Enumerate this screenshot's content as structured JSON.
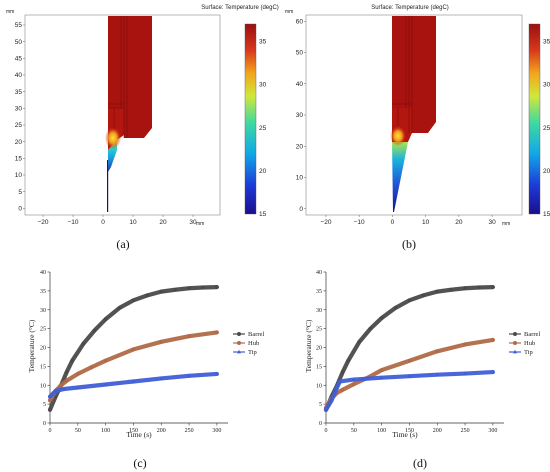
{
  "captions": [
    "(a)",
    "(b)",
    "(c)",
    "(d)"
  ],
  "colors": {
    "barrel": "#4a4a4a",
    "hub": "#b06a48",
    "tip": "#3f5fd6",
    "hot": "#9b0f0f",
    "cold": "#1b0f8a"
  },
  "chart_data": [
    {
      "type": "heatmap",
      "panel": "a",
      "title": "Surface: Temperature (degC)",
      "axis_unit": "mm",
      "x_ticks": [
        "−20",
        "−10",
        "0",
        "10",
        "20",
        "30"
      ],
      "y_ticks": [
        "0",
        "5",
        "10",
        "15",
        "20",
        "25",
        "30",
        "35",
        "40",
        "45",
        "50",
        "55"
      ],
      "xlim": [
        -26,
        39
      ],
      "ylim": [
        -2,
        58
      ],
      "colorbar_ticks": [
        "35",
        "30",
        "25",
        "20",
        "15"
      ],
      "colorbar_range": [
        15,
        37
      ]
    },
    {
      "type": "heatmap",
      "panel": "b",
      "title": "Surface: Temperature (degC)",
      "axis_unit": "mm",
      "x_ticks": [
        "−20",
        "−10",
        "0",
        "10",
        "20",
        "30"
      ],
      "y_ticks": [
        "0",
        "10",
        "20",
        "30",
        "40",
        "50",
        "60"
      ],
      "xlim": [
        -26,
        39
      ],
      "ylim": [
        -2,
        62
      ],
      "colorbar_ticks": [
        "35",
        "30",
        "25",
        "20",
        "15"
      ],
      "colorbar_range": [
        15,
        37
      ]
    },
    {
      "type": "line",
      "panel": "c",
      "xlabel": "Time (s)",
      "ylabel": "Temperature (°C)",
      "xlim": [
        0,
        320
      ],
      "ylim": [
        0,
        40
      ],
      "x_ticks": [
        "0",
        "50",
        "100",
        "150",
        "200",
        "250",
        "300"
      ],
      "y_ticks": [
        "0",
        "5",
        "10",
        "15",
        "20",
        "25",
        "30",
        "35",
        "40"
      ],
      "legend_position": "right",
      "series": [
        {
          "name": "Barrel",
          "x": [
            0,
            10,
            20,
            30,
            40,
            60,
            80,
            100,
            125,
            150,
            175,
            200,
            225,
            250,
            275,
            300
          ],
          "values": [
            3.5,
            7,
            10,
            13.5,
            16.5,
            21,
            24.5,
            27.5,
            30.5,
            32.5,
            33.8,
            34.8,
            35.3,
            35.7,
            35.9,
            36
          ]
        },
        {
          "name": "Hub",
          "x": [
            0,
            10,
            20,
            30,
            50,
            75,
            100,
            150,
            200,
            250,
            300
          ],
          "values": [
            6,
            8.5,
            10,
            11.2,
            13,
            14.8,
            16.5,
            19.5,
            21.5,
            23,
            24
          ]
        },
        {
          "name": "Tip",
          "x": [
            0,
            10,
            25,
            50,
            100,
            150,
            200,
            250,
            300
          ],
          "values": [
            7,
            8.5,
            9,
            9.4,
            10.2,
            11,
            11.8,
            12.5,
            13
          ]
        }
      ]
    },
    {
      "type": "line",
      "panel": "d",
      "xlabel": "Time (s)",
      "ylabel": "Temperature (°C)",
      "xlim": [
        0,
        320
      ],
      "ylim": [
        0,
        40
      ],
      "x_ticks": [
        "0",
        "50",
        "100",
        "150",
        "200",
        "250",
        "300"
      ],
      "y_ticks": [
        "0",
        "5",
        "10",
        "15",
        "20",
        "25",
        "30",
        "35",
        "40"
      ],
      "legend_position": "right",
      "series": [
        {
          "name": "Barrel",
          "x": [
            0,
            10,
            20,
            30,
            40,
            60,
            80,
            100,
            125,
            150,
            175,
            200,
            225,
            250,
            275,
            300
          ],
          "values": [
            3.5,
            7,
            10,
            13.5,
            16.5,
            21.5,
            25,
            27.8,
            30.5,
            32.5,
            33.8,
            34.8,
            35.3,
            35.7,
            35.9,
            36
          ]
        },
        {
          "name": "Hub",
          "x": [
            0,
            10,
            20,
            30,
            50,
            75,
            100,
            150,
            200,
            250,
            300
          ],
          "values": [
            4,
            6.5,
            8,
            8.8,
            10.3,
            12,
            14,
            16.5,
            19,
            20.8,
            22
          ]
        },
        {
          "name": "Tip",
          "x": [
            0,
            10,
            20,
            25,
            50,
            100,
            150,
            200,
            250,
            300
          ],
          "values": [
            3.5,
            6,
            9.5,
            11,
            11.5,
            12,
            12.4,
            12.8,
            13.1,
            13.5
          ]
        }
      ]
    }
  ]
}
